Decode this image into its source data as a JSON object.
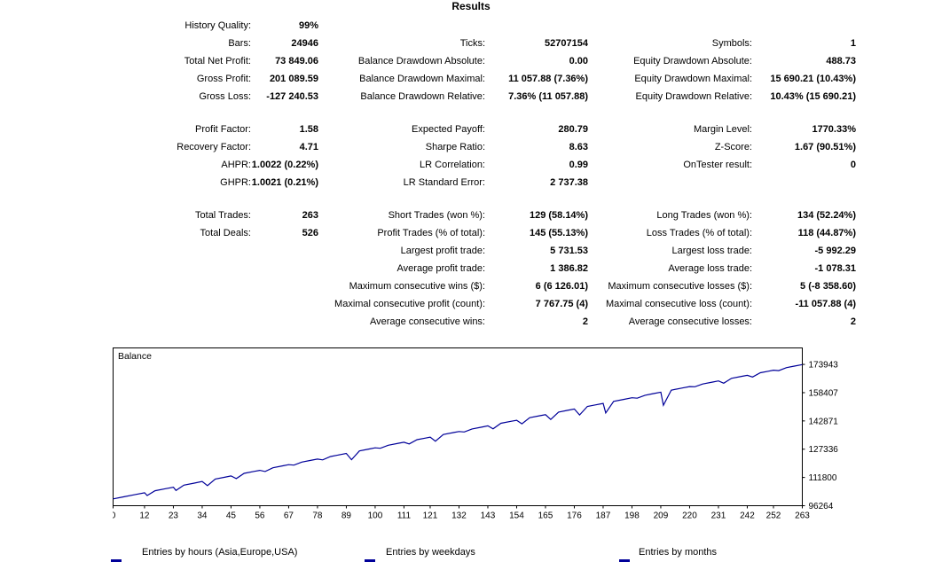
{
  "title": "Results",
  "stats": {
    "rows": [
      {
        "cells": [
          "History Quality:",
          "99%",
          "",
          "",
          "",
          ""
        ]
      },
      {
        "cells": [
          "Bars:",
          "24946",
          "Ticks:",
          "52707154",
          "Symbols:",
          "1"
        ]
      },
      {
        "cells": [
          "Total Net Profit:",
          "73 849.06",
          "Balance Drawdown Absolute:",
          "0.00",
          "Equity Drawdown Absolute:",
          "488.73"
        ]
      },
      {
        "cells": [
          "Gross Profit:",
          "201 089.59",
          "Balance Drawdown Maximal:",
          "11 057.88 (7.36%)",
          "Equity Drawdown Maximal:",
          "15 690.21 (10.43%)"
        ]
      },
      {
        "cells": [
          "Gross Loss:",
          "-127 240.53",
          "Balance Drawdown Relative:",
          "7.36% (11 057.88)",
          "Equity Drawdown Relative:",
          "10.43% (15 690.21)"
        ]
      },
      {
        "spacer": true
      },
      {
        "cells": [
          "Profit Factor:",
          "1.58",
          "Expected Payoff:",
          "280.79",
          "Margin Level:",
          "1770.33%"
        ]
      },
      {
        "cells": [
          "Recovery Factor:",
          "4.71",
          "Sharpe Ratio:",
          "8.63",
          "Z-Score:",
          "1.67 (90.51%)"
        ]
      },
      {
        "cells": [
          "AHPR:",
          "1.0022 (0.22%)",
          "LR Correlation:",
          "0.99",
          "OnTester result:",
          "0"
        ]
      },
      {
        "cells": [
          "GHPR:",
          "1.0021 (0.21%)",
          "LR Standard Error:",
          "2 737.38",
          "",
          ""
        ]
      },
      {
        "spacer": true
      },
      {
        "cells": [
          "Total Trades:",
          "263",
          "Short Trades (won %):",
          "129 (58.14%)",
          "Long Trades (won %):",
          "134 (52.24%)"
        ]
      },
      {
        "cells": [
          "Total Deals:",
          "526",
          "Profit Trades (% of total):",
          "145 (55.13%)",
          "Loss Trades (% of total):",
          "118 (44.87%)"
        ]
      },
      {
        "cells": [
          "",
          "",
          "Largest profit trade:",
          "5 731.53",
          "Largest loss trade:",
          "-5 992.29"
        ]
      },
      {
        "cells": [
          "",
          "",
          "Average profit trade:",
          "1 386.82",
          "Average loss trade:",
          "-1 078.31"
        ]
      },
      {
        "cells": [
          "",
          "",
          "Maximum consecutive wins ($):",
          "6 (6 126.01)",
          "Maximum consecutive losses ($):",
          "5 (-8 358.60)"
        ]
      },
      {
        "cells": [
          "",
          "",
          "Maximal consecutive profit (count):",
          "7 767.75 (4)",
          "Maximal consecutive loss (count):",
          "-11 057.88 (4)"
        ]
      },
      {
        "cells": [
          "",
          "",
          "Average consecutive wins:",
          "2",
          "Average consecutive losses:",
          "2"
        ]
      }
    ]
  },
  "sections": [
    {
      "title": "Entries by hours (Asia,Europe,USA)"
    },
    {
      "title": "Entries by weekdays"
    },
    {
      "title": "Entries by months"
    }
  ],
  "chart_data": {
    "type": "line",
    "title": "Balance",
    "line_color": "#000099",
    "xlabel": "",
    "ylabel": "",
    "xlim": [
      0,
      263
    ],
    "ylim": [
      96264,
      183000
    ],
    "yticks": [
      96264,
      111800,
      127336,
      142871,
      158407,
      173943
    ],
    "xticks": [
      0,
      12,
      23,
      34,
      45,
      56,
      67,
      78,
      89,
      100,
      111,
      121,
      132,
      143,
      154,
      165,
      176,
      187,
      198,
      209,
      220,
      231,
      242,
      252,
      263
    ],
    "points": [
      [
        0,
        100000
      ],
      [
        4,
        101123
      ],
      [
        8,
        102246
      ],
      [
        12,
        103370
      ],
      [
        13,
        101870
      ],
      [
        16,
        104493
      ],
      [
        20,
        105616
      ],
      [
        23,
        106458
      ],
      [
        24,
        104660
      ],
      [
        27,
        107582
      ],
      [
        31,
        108705
      ],
      [
        34,
        109547
      ],
      [
        36,
        107309
      ],
      [
        39,
        110951
      ],
      [
        43,
        112074
      ],
      [
        45,
        112636
      ],
      [
        47,
        111198
      ],
      [
        50,
        114040
      ],
      [
        54,
        115163
      ],
      [
        56,
        115725
      ],
      [
        58,
        115086
      ],
      [
        61,
        117129
      ],
      [
        65,
        118252
      ],
      [
        67,
        118814
      ],
      [
        69,
        118575
      ],
      [
        72,
        120218
      ],
      [
        76,
        121341
      ],
      [
        78,
        121902
      ],
      [
        80,
        121464
      ],
      [
        83,
        123306
      ],
      [
        87,
        124430
      ],
      [
        89,
        124991
      ],
      [
        91,
        121553
      ],
      [
        94,
        126395
      ],
      [
        98,
        127518
      ],
      [
        100,
        128080
      ],
      [
        102,
        127842
      ],
      [
        105,
        129484
      ],
      [
        109,
        130607
      ],
      [
        111,
        131169
      ],
      [
        113,
        130230
      ],
      [
        116,
        132573
      ],
      [
        119,
        133415
      ],
      [
        121,
        133977
      ],
      [
        123,
        131738
      ],
      [
        126,
        135381
      ],
      [
        130,
        136504
      ],
      [
        132,
        137066
      ],
      [
        134,
        136828
      ],
      [
        137,
        138470
      ],
      [
        141,
        139593
      ],
      [
        143,
        140154
      ],
      [
        145,
        138516
      ],
      [
        148,
        141558
      ],
      [
        152,
        142681
      ],
      [
        154,
        143243
      ],
      [
        156,
        141304
      ],
      [
        159,
        144647
      ],
      [
        163,
        145770
      ],
      [
        165,
        146332
      ],
      [
        167,
        143693
      ],
      [
        170,
        147736
      ],
      [
        173,
        148578
      ],
      [
        176,
        149421
      ],
      [
        178,
        146183
      ],
      [
        181,
        150825
      ],
      [
        184,
        151667
      ],
      [
        187,
        152510
      ],
      [
        188,
        147291
      ],
      [
        191,
        153633
      ],
      [
        195,
        154756
      ],
      [
        198,
        155598
      ],
      [
        200,
        155360
      ],
      [
        203,
        157002
      ],
      [
        206,
        157845
      ],
      [
        209,
        158687
      ],
      [
        210,
        151468
      ],
      [
        213,
        159810
      ],
      [
        217,
        160934
      ],
      [
        220,
        161776
      ],
      [
        222,
        161638
      ],
      [
        225,
        163180
      ],
      [
        229,
        164303
      ],
      [
        231,
        164865
      ],
      [
        233,
        163626
      ],
      [
        236,
        166269
      ],
      [
        240,
        167392
      ],
      [
        242,
        167954
      ],
      [
        244,
        167015
      ],
      [
        247,
        169358
      ],
      [
        250,
        170200
      ],
      [
        252,
        170762
      ],
      [
        254,
        170523
      ],
      [
        257,
        172166
      ],
      [
        260,
        173008
      ],
      [
        263,
        173849
      ]
    ]
  }
}
